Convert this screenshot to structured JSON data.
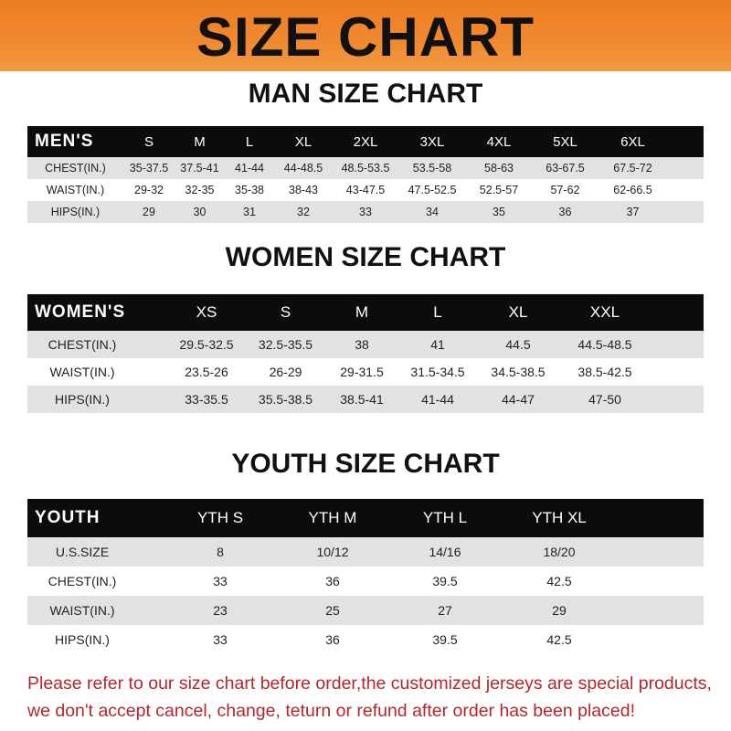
{
  "banner": {
    "title": "SIZE CHART",
    "color": "#f08a30"
  },
  "men": {
    "title": "MAN SIZE CHART",
    "header": [
      "MEN'S",
      "S",
      "M",
      "L",
      "XL",
      "2XL",
      "3XL",
      "4XL",
      "5XL",
      "6XL"
    ],
    "rows": [
      [
        "CHEST(IN.)",
        "35-37.5",
        "37.5-41",
        "41-44",
        "44-48.5",
        "48.5-53.5",
        "53.5-58",
        "58-63",
        "63-67.5",
        "67.5-72"
      ],
      [
        "WAIST(IN.)",
        "29-32",
        "32-35",
        "35-38",
        "38-43",
        "43-47.5",
        "47.5-52.5",
        "52.5-57",
        "57-62",
        "62-66.5"
      ],
      [
        "HIPS(IN.)",
        "29",
        "30",
        "31",
        "32",
        "33",
        "34",
        "35",
        "36",
        "37"
      ]
    ]
  },
  "women": {
    "title": "WOMEN SIZE CHART",
    "header": [
      "WOMEN'S",
      "XS",
      "S",
      "M",
      "L",
      "XL",
      "XXL"
    ],
    "rows": [
      [
        "CHEST(IN.)",
        "29.5-32.5",
        "32.5-35.5",
        "38",
        "41",
        "44.5",
        "44.5-48.5"
      ],
      [
        "WAIST(IN.)",
        "23.5-26",
        "26-29",
        "29-31.5",
        "31.5-34.5",
        "34.5-38.5",
        "38.5-42.5"
      ],
      [
        "HIPS(IN.)",
        "33-35.5",
        "35.5-38.5",
        "38.5-41",
        "41-44",
        "44-47",
        "47-50"
      ]
    ]
  },
  "youth": {
    "title": "YOUTH SIZE CHART",
    "header": [
      "YOUTH",
      "YTH S",
      "YTH M",
      "YTH L",
      "YTH XL"
    ],
    "rows": [
      [
        "U.S.SIZE",
        "8",
        "10/12",
        "14/16",
        "18/20"
      ],
      [
        "CHEST(IN.)",
        "33",
        "36",
        "39.5",
        "42.5"
      ],
      [
        "WAIST(IN.)",
        "23",
        "25",
        "27",
        "29"
      ],
      [
        "HIPS(IN.)",
        "33",
        "36",
        "39.5",
        "42.5"
      ]
    ]
  },
  "footer": {
    "line1": "Please refer to our size chart before order,the customized jerseys are special products,",
    "line2": "we don't accept cancel, change, teturn or refund after order has been placed!",
    "color": "#b3262a"
  }
}
